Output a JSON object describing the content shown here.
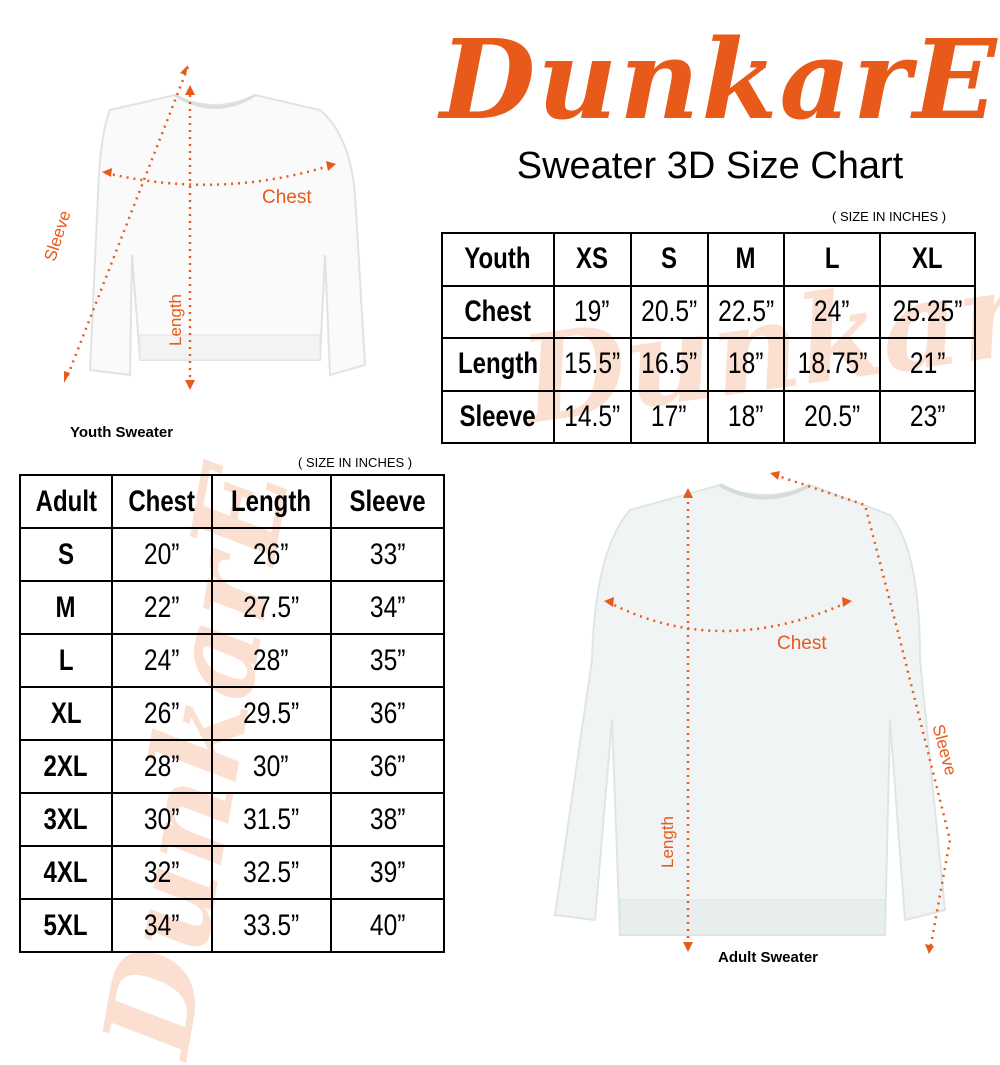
{
  "brand": {
    "logo_text": "DunkarE",
    "color": "#e85a1a"
  },
  "title": "Sweater 3D Size Chart",
  "youth": {
    "unit_note": "( SIZE IN INCHES )",
    "caption": "Youth Sweater",
    "labels": {
      "chest": "Chest",
      "length": "Length",
      "sleeve": "Sleeve"
    },
    "header": [
      "Youth",
      "XS",
      "S",
      "M",
      "L",
      "XL"
    ],
    "rows": [
      [
        "Chest",
        "19”",
        "20.5”",
        "22.5”",
        "24”",
        "25.25”"
      ],
      [
        "Length",
        "15.5”",
        "16.5”",
        "18”",
        "18.75”",
        "21”"
      ],
      [
        "Sleeve",
        "14.5”",
        "17”",
        "18”",
        "20.5”",
        "23”"
      ]
    ]
  },
  "adult": {
    "unit_note": "( SIZE IN INCHES )",
    "caption": "Adult Sweater",
    "labels": {
      "chest": "Chest",
      "length": "Length",
      "sleeve": "Sleeve"
    },
    "header": [
      "Adult",
      "Chest",
      "Length",
      "Sleeve"
    ],
    "rows": [
      [
        "S",
        "20”",
        "26”",
        "33”"
      ],
      [
        "M",
        "22”",
        "27.5”",
        "34”"
      ],
      [
        "L",
        "24”",
        "28”",
        "35”"
      ],
      [
        "XL",
        "26”",
        "29.5”",
        "36”"
      ],
      [
        "2XL",
        "28”",
        "30”",
        "36”"
      ],
      [
        "3XL",
        "30”",
        "31.5”",
        "38”"
      ],
      [
        "4XL",
        "32”",
        "32.5”",
        "39”"
      ],
      [
        "5XL",
        "34”",
        "33.5”",
        "40”"
      ]
    ]
  }
}
